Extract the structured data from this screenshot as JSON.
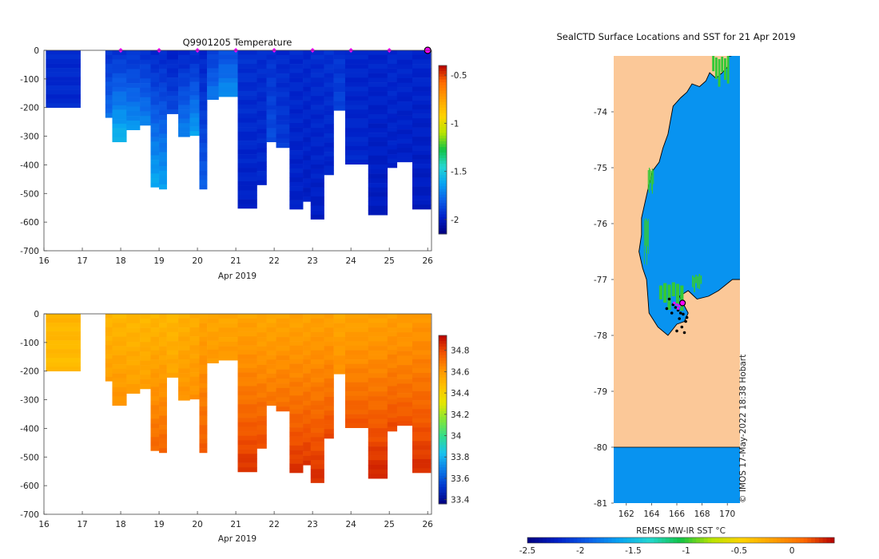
{
  "colors": {
    "temperature_scale": [
      "#00007f",
      "#0020c8",
      "#0b5fe8",
      "#07a4f2",
      "#24d7d0",
      "#11c244",
      "#b9e400",
      "#ffd200",
      "#ffa000",
      "#ff6a00",
      "#b40000"
    ],
    "salinity_scale": [
      "#00007f",
      "#0033cc",
      "#0b79e6",
      "#18c2ef",
      "#31dc8c",
      "#84e636",
      "#e6e600",
      "#ffc000",
      "#ff9000",
      "#f05000",
      "#b80000"
    ],
    "land": "#fbc898",
    "coast": "#000000",
    "profile_marker": "#ff00ff"
  },
  "chart_data": [
    {
      "name": "temperature-section",
      "type": "heatmap",
      "title": "Q9901205  Temperature",
      "xlabel": "Apr 2019",
      "ylabel": "",
      "xlim": [
        16,
        26.1
      ],
      "ylim": [
        -700,
        0
      ],
      "xticks": [
        16,
        17,
        18,
        19,
        20,
        21,
        22,
        23,
        24,
        25,
        26
      ],
      "yticks": [
        0,
        -100,
        -200,
        -300,
        -400,
        -500,
        -600,
        -700
      ],
      "colorbar": {
        "clim": [
          -2.15,
          -0.4
        ],
        "ticks": [
          -0.5,
          -1,
          -1.5,
          -2
        ]
      },
      "top_markers_x": [
        18,
        19,
        20,
        21,
        22,
        23,
        24,
        25
      ],
      "latest_marker_x": 26,
      "profiles": [
        {
          "x0": 16.05,
          "x1": 16.95,
          "depth": 200,
          "surface": -1.95,
          "deep": -1.95
        },
        {
          "x0": 17.6,
          "x1": 17.78,
          "depth": 235,
          "surface": -1.92,
          "deep": -1.75
        },
        {
          "x0": 17.78,
          "x1": 18.15,
          "depth": 320,
          "surface": -1.92,
          "deep": -1.55
        },
        {
          "x0": 18.15,
          "x1": 18.5,
          "depth": 278,
          "surface": -1.92,
          "deep": -1.65
        },
        {
          "x0": 18.5,
          "x1": 18.78,
          "depth": 262,
          "surface": -1.93,
          "deep": -1.7
        },
        {
          "x0": 18.78,
          "x1": 19.0,
          "depth": 478,
          "surface": -1.95,
          "deep": -1.6
        },
        {
          "x0": 19.0,
          "x1": 19.2,
          "depth": 485,
          "surface": -1.95,
          "deep": -1.62
        },
        {
          "x0": 19.2,
          "x1": 19.5,
          "depth": 222,
          "surface": -1.97,
          "deep": -1.85
        },
        {
          "x0": 19.5,
          "x1": 19.8,
          "depth": 302,
          "surface": -1.96,
          "deep": -1.7
        },
        {
          "x0": 19.8,
          "x1": 20.05,
          "depth": 298,
          "surface": -1.95,
          "deep": -1.62
        },
        {
          "x0": 20.05,
          "x1": 20.25,
          "depth": 485,
          "surface": -1.96,
          "deep": -1.8
        },
        {
          "x0": 20.25,
          "x1": 20.55,
          "depth": 172,
          "surface": -1.9,
          "deep": -1.72
        },
        {
          "x0": 20.55,
          "x1": 21.05,
          "depth": 162,
          "surface": -1.85,
          "deep": -1.66
        },
        {
          "x0": 21.05,
          "x1": 21.55,
          "depth": 552,
          "surface": -1.93,
          "deep": -1.98
        },
        {
          "x0": 21.55,
          "x1": 21.8,
          "depth": 470,
          "surface": -1.94,
          "deep": -1.96
        },
        {
          "x0": 21.8,
          "x1": 22.05,
          "depth": 320,
          "surface": -1.93,
          "deep": -1.85
        },
        {
          "x0": 22.05,
          "x1": 22.4,
          "depth": 340,
          "surface": -1.95,
          "deep": -1.9
        },
        {
          "x0": 22.4,
          "x1": 22.75,
          "depth": 555,
          "surface": -1.95,
          "deep": -1.98
        },
        {
          "x0": 22.75,
          "x1": 22.95,
          "depth": 528,
          "surface": -1.95,
          "deep": -1.99
        },
        {
          "x0": 22.95,
          "x1": 23.3,
          "depth": 590,
          "surface": -1.94,
          "deep": -1.99
        },
        {
          "x0": 23.3,
          "x1": 23.55,
          "depth": 435,
          "surface": -1.93,
          "deep": -1.97
        },
        {
          "x0": 23.55,
          "x1": 23.85,
          "depth": 210,
          "surface": -1.93,
          "deep": -1.87
        },
        {
          "x0": 23.85,
          "x1": 24.45,
          "depth": 398,
          "surface": -1.96,
          "deep": -1.96
        },
        {
          "x0": 24.45,
          "x1": 24.95,
          "depth": 575,
          "surface": -1.96,
          "deep": -2.0
        },
        {
          "x0": 24.95,
          "x1": 25.2,
          "depth": 410,
          "surface": -1.95,
          "deep": -1.98
        },
        {
          "x0": 25.2,
          "x1": 25.6,
          "depth": 390,
          "surface": -1.96,
          "deep": -1.98
        },
        {
          "x0": 25.6,
          "x1": 26.08,
          "depth": 555,
          "surface": -1.96,
          "deep": -2.0
        }
      ]
    },
    {
      "name": "salinity-section",
      "type": "heatmap",
      "title": "",
      "xlabel": "Apr 2019",
      "ylabel": "",
      "xlim": [
        16,
        26.1
      ],
      "ylim": [
        -700,
        0
      ],
      "xticks": [
        16,
        17,
        18,
        19,
        20,
        21,
        22,
        23,
        24,
        25,
        26
      ],
      "yticks": [
        0,
        -100,
        -200,
        -300,
        -400,
        -500,
        -600,
        -700
      ],
      "colorbar": {
        "clim": [
          33.36,
          34.94
        ],
        "ticks": [
          34.8,
          34.6,
          34.4,
          34.2,
          34,
          33.8,
          33.6,
          33.4
        ]
      },
      "profiles": [
        {
          "x0": 16.05,
          "x1": 16.95,
          "depth": 200,
          "surface": 34.5,
          "deep": 34.48
        },
        {
          "x0": 17.6,
          "x1": 17.78,
          "depth": 235,
          "surface": 34.5,
          "deep": 34.58
        },
        {
          "x0": 17.78,
          "x1": 18.15,
          "depth": 320,
          "surface": 34.5,
          "deep": 34.62
        },
        {
          "x0": 18.15,
          "x1": 18.5,
          "depth": 278,
          "surface": 34.5,
          "deep": 34.58
        },
        {
          "x0": 18.5,
          "x1": 18.78,
          "depth": 262,
          "surface": 34.5,
          "deep": 34.58
        },
        {
          "x0": 18.78,
          "x1": 19.0,
          "depth": 478,
          "surface": 34.5,
          "deep": 34.73
        },
        {
          "x0": 19.0,
          "x1": 19.2,
          "depth": 485,
          "surface": 34.5,
          "deep": 34.74
        },
        {
          "x0": 19.2,
          "x1": 19.5,
          "depth": 222,
          "surface": 34.5,
          "deep": 34.56
        },
        {
          "x0": 19.5,
          "x1": 19.8,
          "depth": 302,
          "surface": 34.52,
          "deep": 34.62
        },
        {
          "x0": 19.8,
          "x1": 20.05,
          "depth": 298,
          "surface": 34.53,
          "deep": 34.62
        },
        {
          "x0": 20.05,
          "x1": 20.25,
          "depth": 485,
          "surface": 34.56,
          "deep": 34.76
        },
        {
          "x0": 20.25,
          "x1": 20.55,
          "depth": 172,
          "surface": 34.55,
          "deep": 34.6
        },
        {
          "x0": 20.55,
          "x1": 21.05,
          "depth": 162,
          "surface": 34.55,
          "deep": 34.6
        },
        {
          "x0": 21.05,
          "x1": 21.55,
          "depth": 552,
          "surface": 34.56,
          "deep": 34.85
        },
        {
          "x0": 21.55,
          "x1": 21.8,
          "depth": 470,
          "surface": 34.55,
          "deep": 34.8
        },
        {
          "x0": 21.8,
          "x1": 22.05,
          "depth": 320,
          "surface": 34.55,
          "deep": 34.7
        },
        {
          "x0": 22.05,
          "x1": 22.4,
          "depth": 340,
          "surface": 34.56,
          "deep": 34.72
        },
        {
          "x0": 22.4,
          "x1": 22.75,
          "depth": 555,
          "surface": 34.56,
          "deep": 34.85
        },
        {
          "x0": 22.75,
          "x1": 22.95,
          "depth": 528,
          "surface": 34.56,
          "deep": 34.84
        },
        {
          "x0": 22.95,
          "x1": 23.3,
          "depth": 590,
          "surface": 34.57,
          "deep": 34.86
        },
        {
          "x0": 23.3,
          "x1": 23.55,
          "depth": 435,
          "surface": 34.57,
          "deep": 34.8
        },
        {
          "x0": 23.55,
          "x1": 23.85,
          "depth": 210,
          "surface": 34.55,
          "deep": 34.63
        },
        {
          "x0": 23.85,
          "x1": 24.45,
          "depth": 398,
          "surface": 34.56,
          "deep": 34.78
        },
        {
          "x0": 24.45,
          "x1": 24.95,
          "depth": 575,
          "surface": 34.57,
          "deep": 34.88
        },
        {
          "x0": 24.95,
          "x1": 25.2,
          "depth": 410,
          "surface": 34.58,
          "deep": 34.8
        },
        {
          "x0": 25.2,
          "x1": 25.6,
          "depth": 390,
          "surface": 34.58,
          "deep": 34.78
        },
        {
          "x0": 25.6,
          "x1": 26.08,
          "depth": 555,
          "surface": 34.6,
          "deep": 34.86
        }
      ]
    },
    {
      "name": "sst-map",
      "type": "heatmap",
      "title": "SealCTD Surface Locations and SST for 21 Apr 2019",
      "xlim": [
        161,
        171
      ],
      "ylim": [
        -81,
        -73
      ],
      "xticks": [
        162,
        164,
        166,
        168,
        170
      ],
      "yticks": [
        -74,
        -75,
        -76,
        -77,
        -78,
        -79,
        -80,
        -81
      ],
      "colorbar": {
        "label": "REMSS MW-IR SST °C",
        "clim": [
          -2.5,
          0.4
        ],
        "ticks": [
          -2.5,
          -2,
          -1.5,
          -1,
          -0.5,
          0
        ]
      },
      "ocean_sst": -1.7,
      "credit": "© IMOS 17-May-2022 18:38 Hobart",
      "coastline": [
        [
          170.1,
          -73.01
        ],
        [
          170.0,
          -73.2
        ],
        [
          169.6,
          -73.3
        ],
        [
          169.1,
          -73.4
        ],
        [
          168.6,
          -73.3
        ],
        [
          168.3,
          -73.45
        ],
        [
          167.8,
          -73.55
        ],
        [
          167.2,
          -73.5
        ],
        [
          166.8,
          -73.65
        ],
        [
          166.3,
          -73.75
        ],
        [
          165.7,
          -73.9
        ],
        [
          165.5,
          -74.15
        ],
        [
          165.3,
          -74.4
        ],
        [
          164.9,
          -74.65
        ],
        [
          164.6,
          -74.9
        ],
        [
          164.1,
          -75.05
        ],
        [
          163.8,
          -75.3
        ],
        [
          163.5,
          -75.6
        ],
        [
          163.2,
          -75.9
        ],
        [
          163.2,
          -76.2
        ],
        [
          163.0,
          -76.5
        ],
        [
          163.3,
          -76.8
        ],
        [
          163.6,
          -77.0
        ],
        [
          163.7,
          -77.3
        ],
        [
          163.8,
          -77.6
        ],
        [
          164.5,
          -77.85
        ],
        [
          165.3,
          -78.0
        ],
        [
          166.0,
          -77.8
        ],
        [
          166.6,
          -77.75
        ],
        [
          166.9,
          -77.6
        ],
        [
          166.2,
          -77.3
        ],
        [
          166.9,
          -77.2
        ],
        [
          167.6,
          -77.35
        ],
        [
          168.5,
          -77.3
        ],
        [
          169.3,
          -77.2
        ],
        [
          170.4,
          -77.0
        ]
      ],
      "shelf_edge_lat": -80.0,
      "sea_ice_patches": [
        {
          "lon": [
            168.8,
            170.2
          ],
          "lat": [
            -73.55,
            -73.0
          ]
        },
        {
          "lon": [
            163.7,
            164.2
          ],
          "lat": [
            -75.5,
            -75.0
          ]
        },
        {
          "lon": [
            163.4,
            163.8
          ],
          "lat": [
            -76.8,
            -75.9
          ]
        },
        {
          "lon": [
            164.6,
            166.6
          ],
          "lat": [
            -77.55,
            -77.05
          ]
        },
        {
          "lon": [
            167.2,
            168.0
          ],
          "lat": [
            -77.2,
            -76.9
          ]
        }
      ],
      "seal_locations": [
        [
          165.4,
          -77.35
        ],
        [
          165.7,
          -77.45
        ],
        [
          165.9,
          -77.5
        ],
        [
          166.1,
          -77.55
        ],
        [
          166.3,
          -77.6
        ],
        [
          166.5,
          -77.62
        ],
        [
          166.2,
          -77.7
        ],
        [
          166.7,
          -77.75
        ],
        [
          166.4,
          -77.85
        ],
        [
          166.0,
          -77.92
        ],
        [
          166.6,
          -77.95
        ],
        [
          165.6,
          -77.6
        ],
        [
          165.2,
          -77.52
        ],
        [
          166.8,
          -77.68
        ]
      ],
      "track_points": [
        [
          165.8,
          -77.42
        ],
        [
          166.0,
          -77.45
        ],
        [
          166.2,
          -77.47
        ],
        [
          166.1,
          -77.52
        ]
      ],
      "latest_location": [
        166.45,
        -77.42
      ]
    }
  ]
}
